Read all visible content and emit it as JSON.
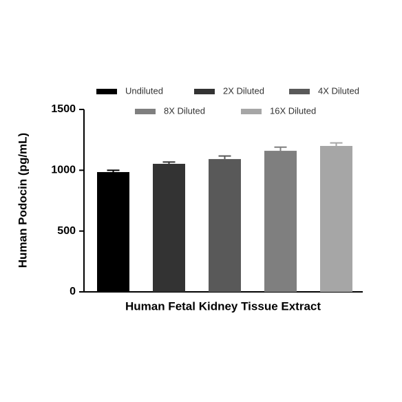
{
  "chart_data": {
    "type": "bar",
    "ylabel": "Human Podocin (pg/mL)",
    "xlabel": "Human Fetal Kidney Tissue Extract",
    "series": [
      {
        "name": "Undiluted",
        "color": "#000000",
        "values": [
          985
        ],
        "errors": [
          15
        ]
      },
      {
        "name": "2X Diluted",
        "color": "#333333",
        "values": [
          1053
        ],
        "errors": [
          15
        ]
      },
      {
        "name": "4X Diluted",
        "color": "#595959",
        "values": [
          1092
        ],
        "errors": [
          25
        ]
      },
      {
        "name": "8X Diluted",
        "color": "#7f7f7f",
        "values": [
          1160
        ],
        "errors": [
          30
        ]
      },
      {
        "name": "16X Diluted",
        "color": "#a6a6a6",
        "values": [
          1200
        ],
        "errors": [
          25
        ]
      }
    ],
    "ylim": [
      0,
      1500
    ],
    "yticks": [
      0,
      500,
      1000,
      1500
    ],
    "grid": false
  }
}
